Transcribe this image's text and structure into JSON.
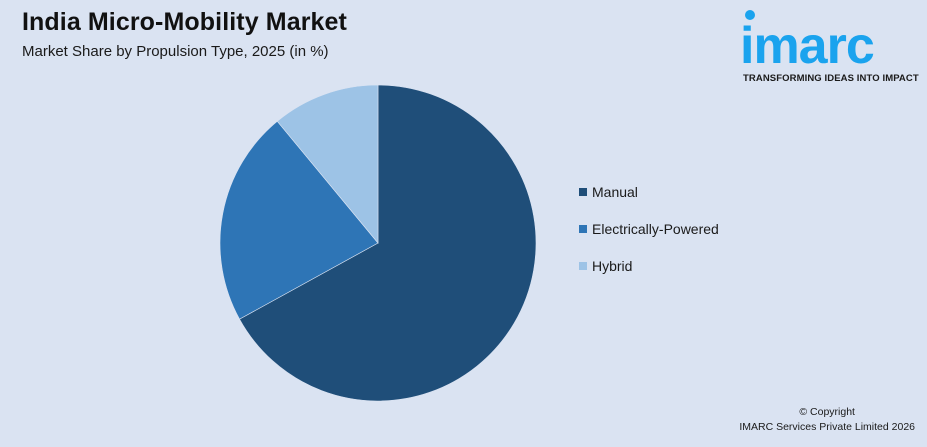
{
  "header": {
    "title": "India Micro-Mobility Market",
    "subtitle": "Market Share by Propulsion Type, 2025 (in %)"
  },
  "logo": {
    "word": "imarc",
    "tagline": "TRANSFORMING IDEAS INTO IMPACT",
    "color": "#1aa3ee"
  },
  "legend": {
    "items": [
      {
        "label": "Manual",
        "color": "#1f4e79"
      },
      {
        "label": "Electrically-Powered",
        "color": "#2e75b6"
      },
      {
        "label": "Hybrid",
        "color": "#9dc3e6"
      }
    ]
  },
  "footer": {
    "line1": "© Copyright",
    "line2": "IMARC Services Private Limited 2026"
  },
  "chart_data": {
    "type": "pie",
    "title": "India Micro-Mobility Market",
    "subtitle": "Market Share by Propulsion Type, 2025 (in %)",
    "categories": [
      "Manual",
      "Electrically-Powered",
      "Hybrid"
    ],
    "values": [
      67,
      22,
      11
    ],
    "colors": [
      "#1f4e79",
      "#2e75b6",
      "#9dc3e6"
    ],
    "start_angle_deg": 0,
    "direction": "clockwise",
    "legend_position": "right",
    "data_labels": false
  }
}
